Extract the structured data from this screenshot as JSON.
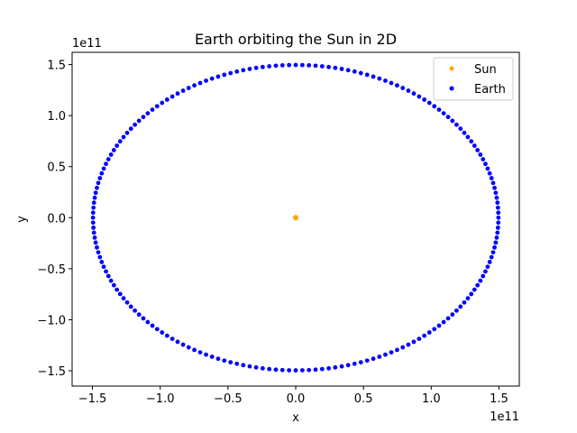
{
  "chart_data": {
    "type": "scatter",
    "title": "Earth orbiting the Sun in 2D",
    "xlabel": "x",
    "ylabel": "y",
    "x_offset_text": "1e11",
    "y_offset_text": "1e11",
    "xlim": [
      -165000000000.0,
      165000000000.0
    ],
    "ylim": [
      -165000000000.0,
      162000000000.0
    ],
    "x_ticks": [
      -150000000000.0,
      -100000000000.0,
      -50000000000.0,
      0,
      50000000000.0,
      100000000000.0,
      150000000000.0
    ],
    "x_tick_labels": [
      "−1.5",
      "−1.0",
      "−0.5",
      "0.0",
      "0.5",
      "1.0",
      "1.5"
    ],
    "y_ticks": [
      -150000000000.0,
      -100000000000.0,
      -50000000000.0,
      0,
      50000000000.0,
      100000000000.0,
      150000000000.0
    ],
    "y_tick_labels": [
      "−1.5",
      "−1.0",
      "−0.5",
      "0.0",
      "0.5",
      "1.0",
      "1.5"
    ],
    "grid": false,
    "legend_position": "top-right",
    "series": [
      {
        "name": "Sun",
        "color": "#FFA500",
        "points": [
          [
            0,
            0
          ]
        ]
      },
      {
        "name": "Earth",
        "color": "#0000FF",
        "orbit": {
          "semi_axis_x": 149600000000.0,
          "semi_axis_y": 149600000000.0,
          "n_points": 192
        }
      }
    ]
  }
}
